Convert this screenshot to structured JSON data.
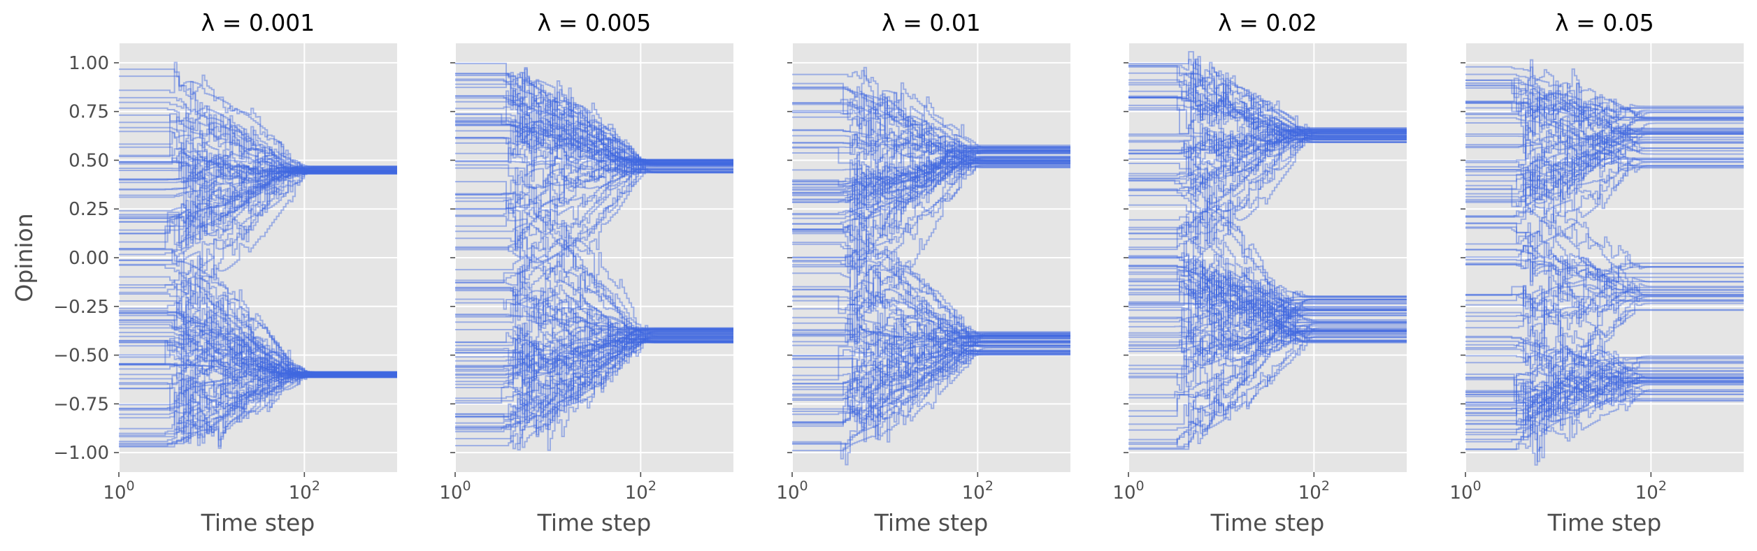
{
  "chart_data": [
    {
      "type": "line",
      "title": "λ = 0.001",
      "lambda": 0.001,
      "xlabel": "Time step",
      "ylabel": "Opinion",
      "xscale": "log",
      "xlim": [
        1,
        1000
      ],
      "ylim": [
        -1.1,
        1.1
      ],
      "x_ticks": [
        {
          "value": 1,
          "base": "10",
          "exp": "0"
        },
        {
          "value": 100,
          "base": "10",
          "exp": "2"
        }
      ],
      "y_ticks": [
        "1.00",
        "0.75",
        "0.50",
        "0.25",
        "0.00",
        "−0.25",
        "−0.50",
        "−0.75",
        "−1.00"
      ],
      "y_tick_values": [
        1,
        0.75,
        0.5,
        0.25,
        0,
        -0.25,
        -0.5,
        -0.75,
        -1
      ],
      "n_agents": 100,
      "initial_range": [
        -1,
        1
      ],
      "clusters": [
        {
          "opinion": 0.45,
          "spread": 0.04
        },
        {
          "opinion": -0.6,
          "spread": 0.03
        }
      ],
      "convergence_step": 70,
      "series_color": "#4169e1",
      "grid": true
    },
    {
      "type": "line",
      "title": "λ = 0.005",
      "lambda": 0.005,
      "xlabel": "Time step",
      "ylabel": "",
      "xscale": "log",
      "xlim": [
        1,
        1000
      ],
      "ylim": [
        -1.1,
        1.1
      ],
      "x_ticks": [
        {
          "value": 1,
          "base": "10",
          "exp": "0"
        },
        {
          "value": 100,
          "base": "10",
          "exp": "2"
        }
      ],
      "y_ticks": [],
      "y_tick_values": [
        1,
        0.75,
        0.5,
        0.25,
        0,
        -0.25,
        -0.5,
        -0.75,
        -1
      ],
      "n_agents": 100,
      "initial_range": [
        -1,
        1
      ],
      "clusters": [
        {
          "opinion": 0.47,
          "spread": 0.07
        },
        {
          "opinion": -0.4,
          "spread": 0.08
        }
      ],
      "convergence_step": 80,
      "series_color": "#4169e1",
      "grid": true
    },
    {
      "type": "line",
      "title": "λ = 0.01",
      "lambda": 0.01,
      "xlabel": "Time step",
      "ylabel": "",
      "xscale": "log",
      "xlim": [
        1,
        1000
      ],
      "ylim": [
        -1.1,
        1.1
      ],
      "x_ticks": [
        {
          "value": 1,
          "base": "10",
          "exp": "0"
        },
        {
          "value": 100,
          "base": "10",
          "exp": "2"
        }
      ],
      "y_ticks": [],
      "y_tick_values": [
        1,
        0.75,
        0.5,
        0.25,
        0,
        -0.25,
        -0.5,
        -0.75,
        -1
      ],
      "n_agents": 100,
      "initial_range": [
        -1,
        1
      ],
      "clusters": [
        {
          "opinion": 0.52,
          "spread": 0.12
        },
        {
          "opinion": -0.44,
          "spread": 0.12
        }
      ],
      "convergence_step": 70,
      "series_color": "#4169e1",
      "grid": true
    },
    {
      "type": "line",
      "title": "λ = 0.02",
      "lambda": 0.02,
      "xlabel": "Time step",
      "ylabel": "",
      "xscale": "log",
      "xlim": [
        1,
        1000
      ],
      "ylim": [
        -1.1,
        1.1
      ],
      "x_ticks": [
        {
          "value": 1,
          "base": "10",
          "exp": "0"
        },
        {
          "value": 100,
          "base": "10",
          "exp": "2"
        }
      ],
      "y_ticks": [],
      "y_tick_values": [
        1,
        0.75,
        0.5,
        0.25,
        0,
        -0.25,
        -0.5,
        -0.75,
        -1
      ],
      "n_agents": 100,
      "initial_range": [
        -1,
        1
      ],
      "clusters": [
        {
          "opinion": 0.63,
          "spread": 0.08
        },
        {
          "opinion": -0.32,
          "spread": 0.25
        }
      ],
      "convergence_step": 60,
      "series_color": "#4169e1",
      "grid": true
    },
    {
      "type": "line",
      "title": "λ = 0.05",
      "lambda": 0.05,
      "xlabel": "Time step",
      "ylabel": "",
      "xscale": "log",
      "xlim": [
        1,
        1000
      ],
      "ylim": [
        -1.1,
        1.1
      ],
      "x_ticks": [
        {
          "value": 1,
          "base": "10",
          "exp": "0"
        },
        {
          "value": 100,
          "base": "10",
          "exp": "2"
        }
      ],
      "y_ticks": [],
      "y_tick_values": [
        1,
        0.75,
        0.5,
        0.25,
        0,
        -0.25,
        -0.5,
        -0.75,
        -1
      ],
      "n_agents": 100,
      "initial_range": [
        -1,
        1
      ],
      "clusters": [
        {
          "opinion": 0.62,
          "spread": 0.32
        },
        {
          "opinion": -0.15,
          "spread": 0.3
        },
        {
          "opinion": -0.62,
          "spread": 0.24
        }
      ],
      "convergence_step": 55,
      "series_color": "#4169e1",
      "grid": true
    }
  ]
}
